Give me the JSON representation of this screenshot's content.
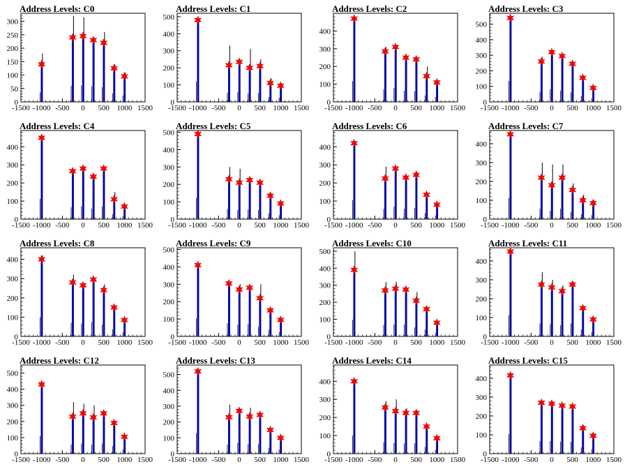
{
  "chart_data": [
    {
      "type": "bar",
      "title": "Address Levels: C0",
      "xlim": [
        -1500,
        1500
      ],
      "xticks": [
        -1500,
        -1000,
        -500,
        0,
        500,
        1000,
        1500
      ],
      "ylim": [
        0,
        330
      ],
      "yticks": [
        0,
        50,
        100,
        150,
        200,
        250,
        300
      ],
      "x": [
        -1000,
        -250,
        0,
        250,
        500,
        750,
        1000
      ],
      "markers": [
        140,
        240,
        245,
        230,
        220,
        125,
        95
      ],
      "peaks": [
        180,
        320,
        315,
        240,
        260,
        140,
        110
      ],
      "bar_color": "#0000cc",
      "marker_color": "#ff0000"
    },
    {
      "type": "bar",
      "title": "Address Levels: C1",
      "xlim": [
        -1500,
        1500
      ],
      "xticks": [
        -1500,
        -1000,
        -500,
        0,
        500,
        1000,
        1500
      ],
      "ylim": [
        0,
        520
      ],
      "yticks": [
        0,
        100,
        200,
        300,
        400,
        500
      ],
      "x": [
        -1000,
        -250,
        0,
        250,
        500,
        750,
        1000
      ],
      "markers": [
        480,
        215,
        235,
        200,
        210,
        110,
        95
      ],
      "peaks": [
        490,
        330,
        230,
        310,
        250,
        140,
        110
      ],
      "bar_color": "#0000cc",
      "marker_color": "#ff0000"
    },
    {
      "type": "bar",
      "title": "Address Levels: C2",
      "xlim": [
        -1500,
        1500
      ],
      "xticks": [
        -1500,
        -1000,
        -500,
        0,
        500,
        1000,
        1500
      ],
      "ylim": [
        0,
        500
      ],
      "yticks": [
        0,
        100,
        200,
        300,
        400
      ],
      "x": [
        -1000,
        -250,
        0,
        250,
        500,
        750,
        1000
      ],
      "markers": [
        470,
        285,
        310,
        250,
        240,
        145,
        110
      ],
      "peaks": [
        480,
        310,
        320,
        260,
        250,
        200,
        120
      ],
      "bar_color": "#0000cc",
      "marker_color": "#ff0000"
    },
    {
      "type": "bar",
      "title": "Address Levels: C3",
      "xlim": [
        -1500,
        1500
      ],
      "xticks": [
        -1500,
        -1000,
        -500,
        0,
        500,
        1000,
        1500
      ],
      "ylim": [
        0,
        570
      ],
      "yticks": [
        0,
        100,
        200,
        300,
        400,
        500
      ],
      "x": [
        -1000,
        -250,
        0,
        250,
        500,
        750,
        1000
      ],
      "markers": [
        540,
        260,
        320,
        295,
        245,
        155,
        90
      ],
      "peaks": [
        550,
        290,
        330,
        300,
        250,
        160,
        100
      ],
      "bar_color": "#0000cc",
      "marker_color": "#ff0000"
    },
    {
      "type": "bar",
      "title": "Address Levels: C4",
      "xlim": [
        -1500,
        1500
      ],
      "xticks": [
        -1500,
        -1000,
        -500,
        0,
        500,
        1000,
        1500
      ],
      "ylim": [
        0,
        490
      ],
      "yticks": [
        0,
        100,
        200,
        300,
        400
      ],
      "x": [
        -1000,
        -250,
        0,
        250,
        500,
        750,
        1000
      ],
      "markers": [
        450,
        265,
        280,
        235,
        280,
        110,
        70
      ],
      "peaks": [
        460,
        270,
        290,
        240,
        290,
        150,
        80
      ],
      "bar_color": "#0000cc",
      "marker_color": "#ff0000"
    },
    {
      "type": "bar",
      "title": "Address Levels: C5",
      "xlim": [
        -1500,
        1500
      ],
      "xticks": [
        -1500,
        -1000,
        -500,
        0,
        500,
        1000,
        1500
      ],
      "ylim": [
        0,
        510
      ],
      "yticks": [
        0,
        100,
        200,
        300,
        400,
        500
      ],
      "x": [
        -1000,
        -250,
        0,
        250,
        500,
        750,
        1000
      ],
      "markers": [
        490,
        230,
        210,
        225,
        210,
        135,
        90
      ],
      "peaks": [
        500,
        300,
        290,
        240,
        220,
        150,
        100
      ],
      "bar_color": "#0000cc",
      "marker_color": "#ff0000"
    },
    {
      "type": "bar",
      "title": "Address Levels: C6",
      "xlim": [
        -1500,
        1500
      ],
      "xticks": [
        -1500,
        -1000,
        -500,
        0,
        500,
        1000,
        1500
      ],
      "ylim": [
        0,
        490
      ],
      "yticks": [
        0,
        100,
        200,
        300,
        400
      ],
      "x": [
        -1000,
        -250,
        0,
        250,
        500,
        750,
        1000
      ],
      "markers": [
        420,
        225,
        280,
        230,
        245,
        135,
        80
      ],
      "peaks": [
        430,
        290,
        290,
        240,
        260,
        140,
        90
      ],
      "bar_color": "#0000cc",
      "marker_color": "#ff0000"
    },
    {
      "type": "bar",
      "title": "Address Levels: C7",
      "xlim": [
        -1500,
        1500
      ],
      "xticks": [
        -1500,
        -1000,
        -500,
        0,
        500,
        1000,
        1500
      ],
      "ylim": [
        0,
        470
      ],
      "yticks": [
        0,
        100,
        200,
        300,
        400
      ],
      "x": [
        -1000,
        -250,
        0,
        250,
        500,
        750,
        1000
      ],
      "markers": [
        450,
        220,
        180,
        220,
        155,
        100,
        85
      ],
      "peaks": [
        460,
        300,
        290,
        290,
        190,
        130,
        100
      ],
      "bar_color": "#0000cc",
      "marker_color": "#ff0000"
    },
    {
      "type": "bar",
      "title": "Address Levels: C8",
      "xlim": [
        -1500,
        1500
      ],
      "xticks": [
        -1500,
        -1000,
        -500,
        0,
        500,
        1000,
        1500
      ],
      "ylim": [
        0,
        460
      ],
      "yticks": [
        0,
        100,
        200,
        300,
        400
      ],
      "x": [
        -1000,
        -250,
        0,
        250,
        500,
        750,
        1000
      ],
      "markers": [
        400,
        280,
        265,
        295,
        240,
        150,
        85
      ],
      "peaks": [
        420,
        320,
        270,
        300,
        270,
        160,
        90
      ],
      "bar_color": "#0000cc",
      "marker_color": "#ff0000"
    },
    {
      "type": "bar",
      "title": "Address Levels: C9",
      "xlim": [
        -1500,
        1500
      ],
      "xticks": [
        -1500,
        -1000,
        -500,
        0,
        500,
        1000,
        1500
      ],
      "ylim": [
        0,
        510
      ],
      "yticks": [
        0,
        100,
        200,
        300,
        400,
        500
      ],
      "x": [
        -1000,
        -250,
        0,
        250,
        500,
        750,
        1000
      ],
      "markers": [
        410,
        305,
        270,
        280,
        220,
        150,
        95
      ],
      "peaks": [
        420,
        310,
        300,
        290,
        300,
        160,
        100
      ],
      "bar_color": "#0000cc",
      "marker_color": "#ff0000"
    },
    {
      "type": "bar",
      "title": "Address Levels: C10",
      "xlim": [
        -1500,
        1500
      ],
      "xticks": [
        -1500,
        -1000,
        -500,
        0,
        500,
        1000,
        1500
      ],
      "ylim": [
        0,
        520
      ],
      "yticks": [
        0,
        100,
        200,
        300,
        400,
        500
      ],
      "x": [
        -1000,
        -250,
        0,
        250,
        500,
        750,
        1000
      ],
      "markers": [
        390,
        270,
        280,
        275,
        210,
        160,
        80
      ],
      "peaks": [
        500,
        320,
        320,
        280,
        260,
        170,
        90
      ],
      "bar_color": "#0000cc",
      "marker_color": "#ff0000"
    },
    {
      "type": "bar",
      "title": "Address Levels: C11",
      "xlim": [
        -1500,
        1500
      ],
      "xticks": [
        -1500,
        -1000,
        -500,
        0,
        500,
        1000,
        1500
      ],
      "ylim": [
        0,
        470
      ],
      "yticks": [
        0,
        100,
        200,
        300,
        400
      ],
      "x": [
        -1000,
        -250,
        0,
        250,
        500,
        750,
        1000
      ],
      "markers": [
        450,
        275,
        260,
        240,
        275,
        150,
        90
      ],
      "peaks": [
        460,
        340,
        300,
        270,
        290,
        160,
        100
      ],
      "bar_color": "#0000cc",
      "marker_color": "#ff0000"
    },
    {
      "type": "bar",
      "title": "Address Levels: C12",
      "xlim": [
        -1500,
        1500
      ],
      "xticks": [
        -1500,
        -1000,
        -500,
        0,
        500,
        1000,
        1500
      ],
      "ylim": [
        0,
        550
      ],
      "yticks": [
        0,
        100,
        200,
        300,
        400,
        500
      ],
      "x": [
        -1000,
        -250,
        0,
        250,
        500,
        750,
        1000
      ],
      "markers": [
        430,
        230,
        250,
        225,
        250,
        190,
        105
      ],
      "peaks": [
        440,
        320,
        310,
        300,
        260,
        200,
        110
      ],
      "bar_color": "#0000cc",
      "marker_color": "#ff0000"
    },
    {
      "type": "bar",
      "title": "Address Levels: C13",
      "xlim": [
        -1500,
        1500
      ],
      "xticks": [
        -1500,
        -1000,
        -500,
        0,
        500,
        1000,
        1500
      ],
      "ylim": [
        0,
        560
      ],
      "yticks": [
        0,
        100,
        200,
        300,
        400,
        500
      ],
      "x": [
        -1000,
        -250,
        0,
        250,
        500,
        750,
        1000
      ],
      "markers": [
        520,
        230,
        270,
        235,
        245,
        150,
        100
      ],
      "peaks": [
        530,
        310,
        280,
        290,
        260,
        160,
        110
      ],
      "bar_color": "#0000cc",
      "marker_color": "#ff0000"
    },
    {
      "type": "bar",
      "title": "Address Levels: C14",
      "xlim": [
        -1500,
        1500
      ],
      "xticks": [
        -1500,
        -1000,
        -500,
        0,
        500,
        1000,
        1500
      ],
      "ylim": [
        0,
        490
      ],
      "yticks": [
        0,
        100,
        200,
        300,
        400
      ],
      "x": [
        -1000,
        -250,
        0,
        250,
        500,
        750,
        1000
      ],
      "markers": [
        400,
        255,
        235,
        225,
        225,
        150,
        85
      ],
      "peaks": [
        410,
        290,
        300,
        250,
        240,
        160,
        90
      ],
      "bar_color": "#0000cc",
      "marker_color": "#ff0000"
    },
    {
      "type": "bar",
      "title": "Address Levels: C15",
      "xlim": [
        -1500,
        1500
      ],
      "xticks": [
        -1500,
        -1000,
        -500,
        0,
        500,
        1000,
        1500
      ],
      "ylim": [
        0,
        470
      ],
      "yticks": [
        0,
        100,
        200,
        300,
        400
      ],
      "x": [
        -1000,
        -250,
        0,
        250,
        500,
        750,
        1000
      ],
      "markers": [
        415,
        270,
        265,
        255,
        250,
        135,
        95
      ],
      "peaks": [
        425,
        280,
        270,
        260,
        260,
        150,
        100
      ],
      "bar_color": "#0000cc",
      "marker_color": "#ff0000"
    }
  ]
}
